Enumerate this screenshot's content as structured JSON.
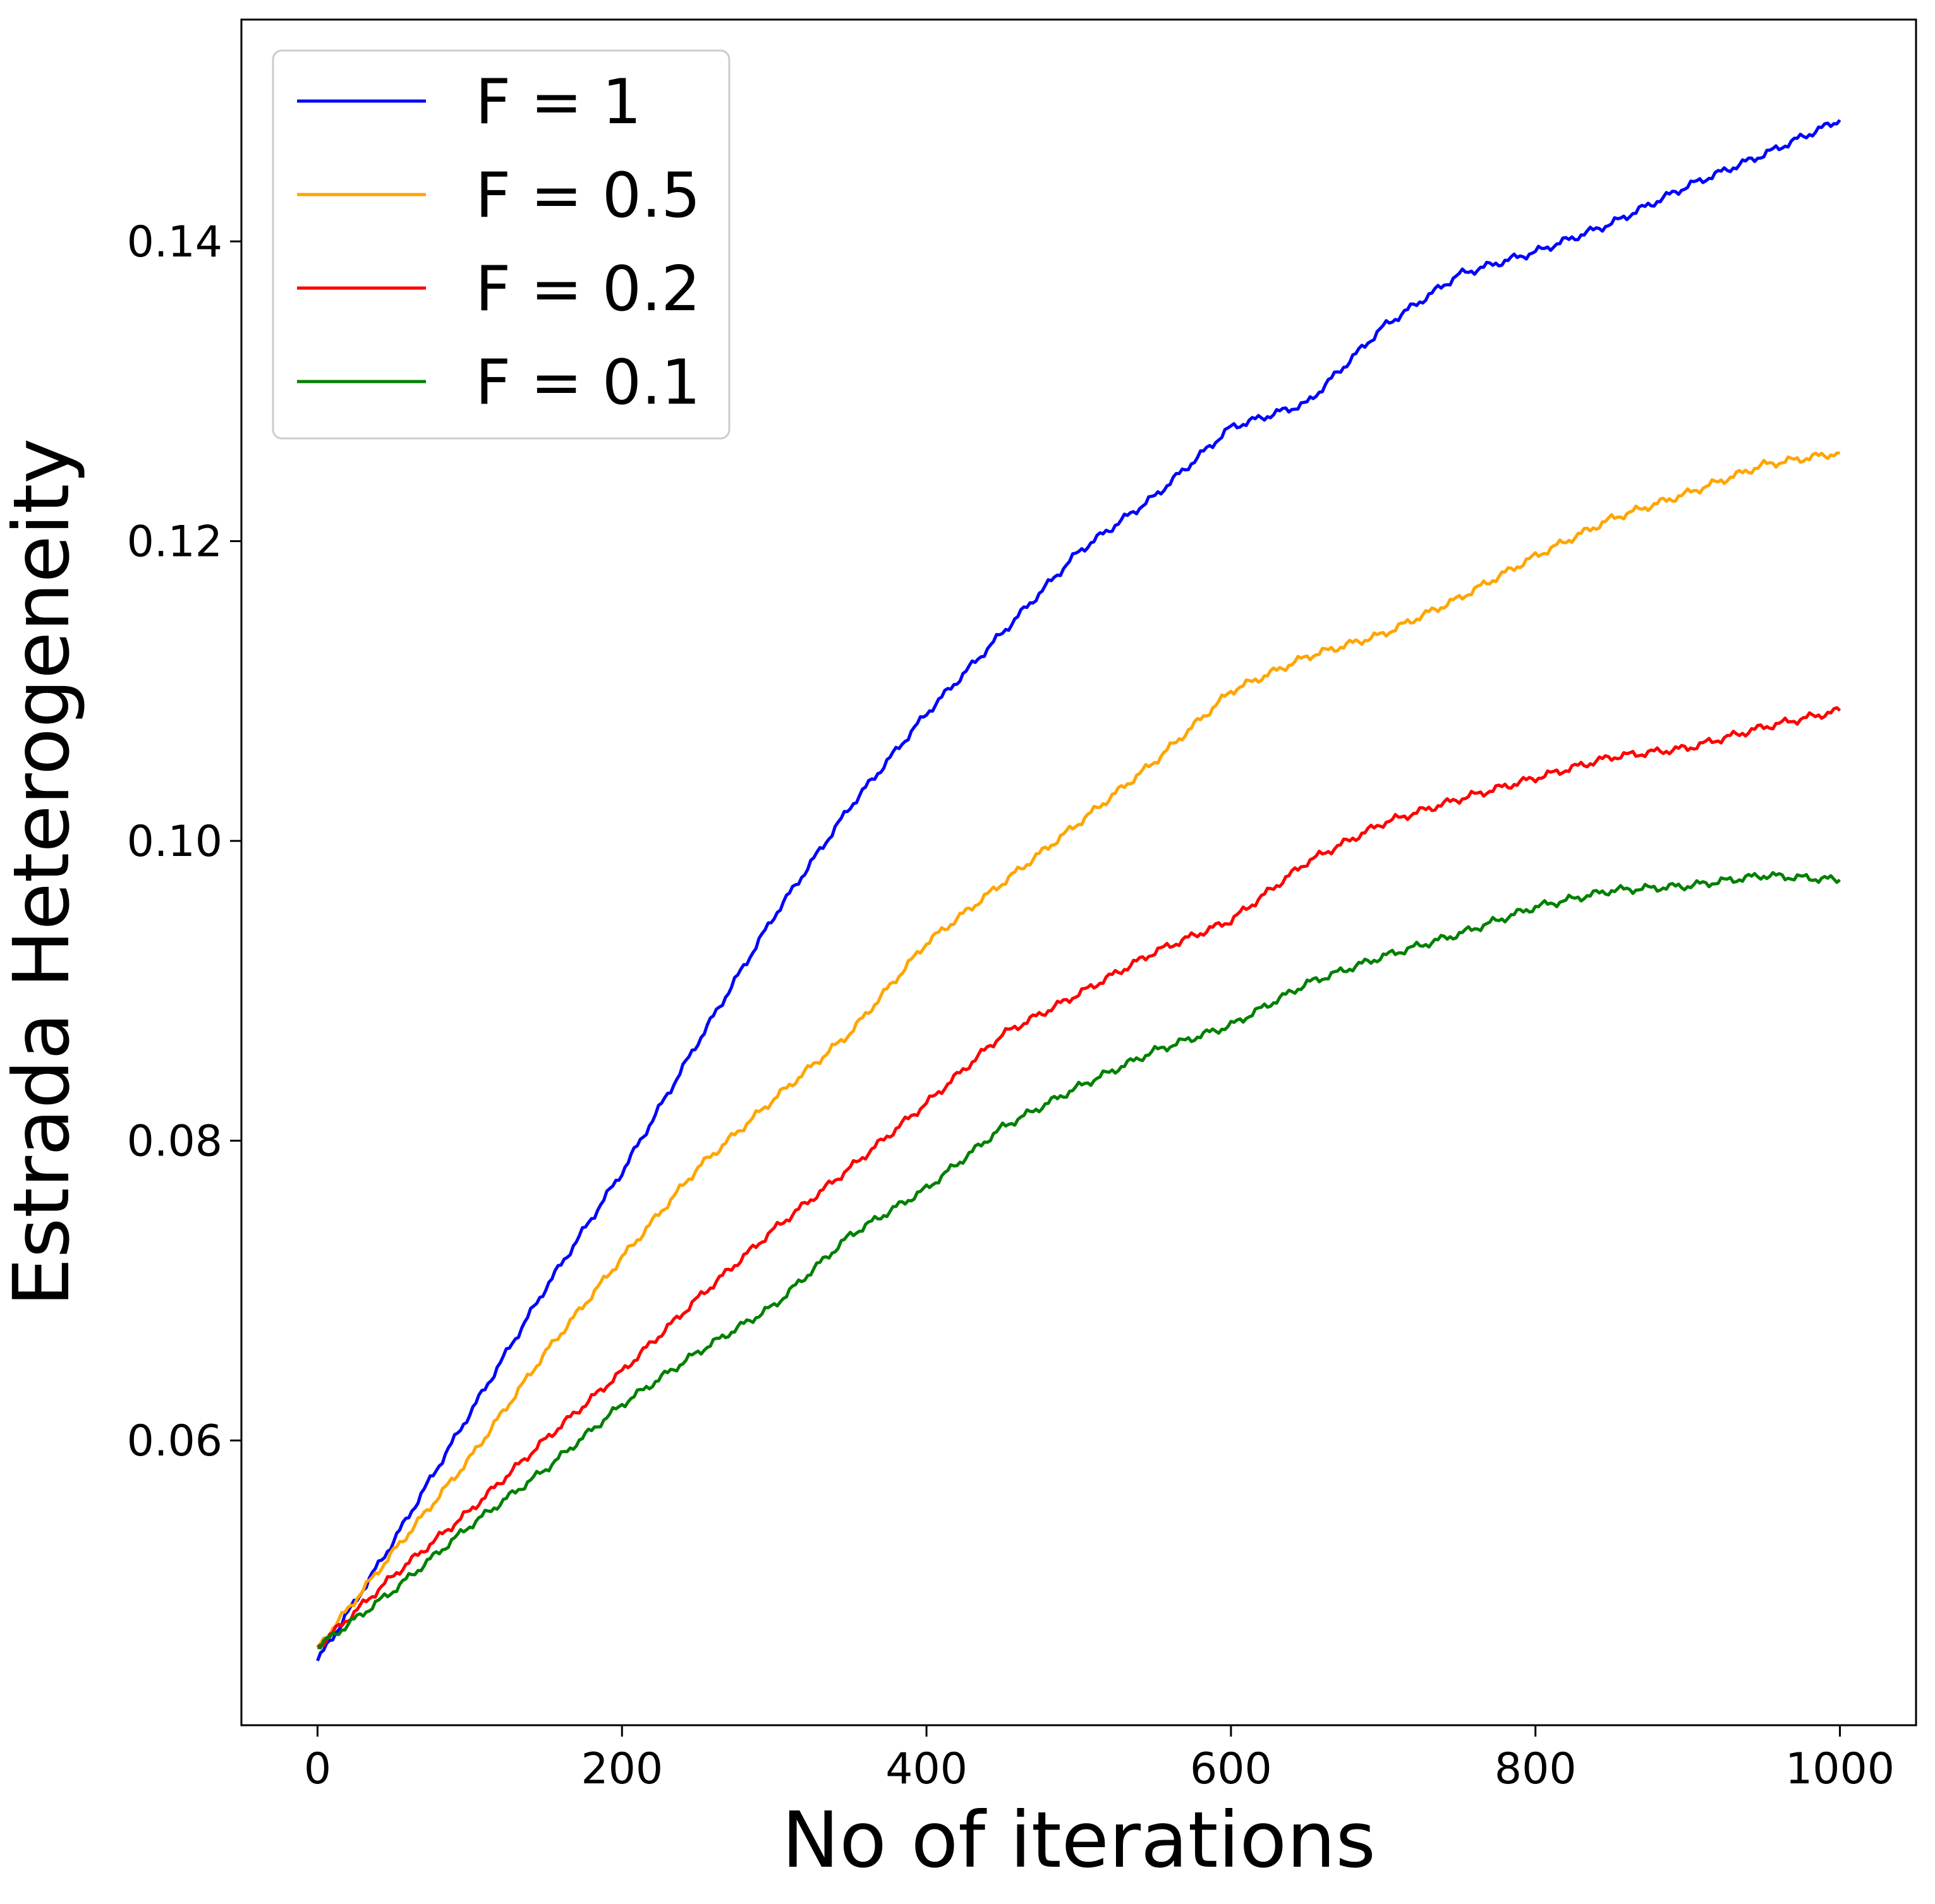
{
  "chart_data": {
    "type": "line",
    "title": "",
    "xlabel": "No of iterations",
    "ylabel": "Estrada Heterogeneity",
    "xlim": [
      -50,
      1050
    ],
    "ylim": [
      0.041,
      0.1548
    ],
    "xticks": [
      0,
      200,
      400,
      600,
      800,
      1000
    ],
    "xtick_labels": [
      "0",
      "200",
      "400",
      "600",
      "800",
      "1000"
    ],
    "yticks": [
      0.06,
      0.08,
      0.1,
      0.12,
      0.14
    ],
    "ytick_labels": [
      "0.06",
      "0.08",
      "0.10",
      "0.12",
      "0.14"
    ],
    "grid": false,
    "legend_position": "upper-left",
    "x": [
      0,
      50,
      100,
      150,
      200,
      250,
      300,
      350,
      400,
      450,
      500,
      550,
      600,
      650,
      700,
      750,
      800,
      850,
      900,
      950,
      1000
    ],
    "series": [
      {
        "name": "F = 1",
        "color": "#0000ff",
        "values": [
          0.0453,
          0.0533,
          0.0618,
          0.0702,
          0.0779,
          0.0866,
          0.095,
          0.1023,
          0.1085,
          0.1139,
          0.1193,
          0.123,
          0.1276,
          0.1292,
          0.1343,
          0.1378,
          0.1393,
          0.1412,
          0.1437,
          0.1458,
          0.1481
        ]
      },
      {
        "name": "F = 0.5",
        "color": "#ffa500",
        "values": [
          0.0462,
          0.0526,
          0.0588,
          0.0659,
          0.0722,
          0.0782,
          0.0828,
          0.0872,
          0.0932,
          0.0972,
          0.1012,
          0.1053,
          0.11,
          0.1123,
          0.1138,
          0.1162,
          0.119,
          0.1215,
          0.1232,
          0.1251,
          0.1259
        ]
      },
      {
        "name": "F = 0.2",
        "color": "#ff0000",
        "values": [
          0.0462,
          0.051,
          0.0553,
          0.0601,
          0.0646,
          0.0695,
          0.0741,
          0.0782,
          0.0825,
          0.0871,
          0.0898,
          0.0926,
          0.0947,
          0.0986,
          0.1012,
          0.1028,
          0.1042,
          0.1056,
          0.1062,
          0.1076,
          0.1087
        ]
      },
      {
        "name": "F = 0.1",
        "color": "#008000",
        "values": [
          0.0462,
          0.05,
          0.0543,
          0.0581,
          0.0624,
          0.0659,
          0.069,
          0.0737,
          0.0768,
          0.0809,
          0.0836,
          0.086,
          0.0877,
          0.0905,
          0.0923,
          0.0938,
          0.0956,
          0.0967,
          0.097,
          0.0977,
          0.0974
        ]
      }
    ]
  }
}
